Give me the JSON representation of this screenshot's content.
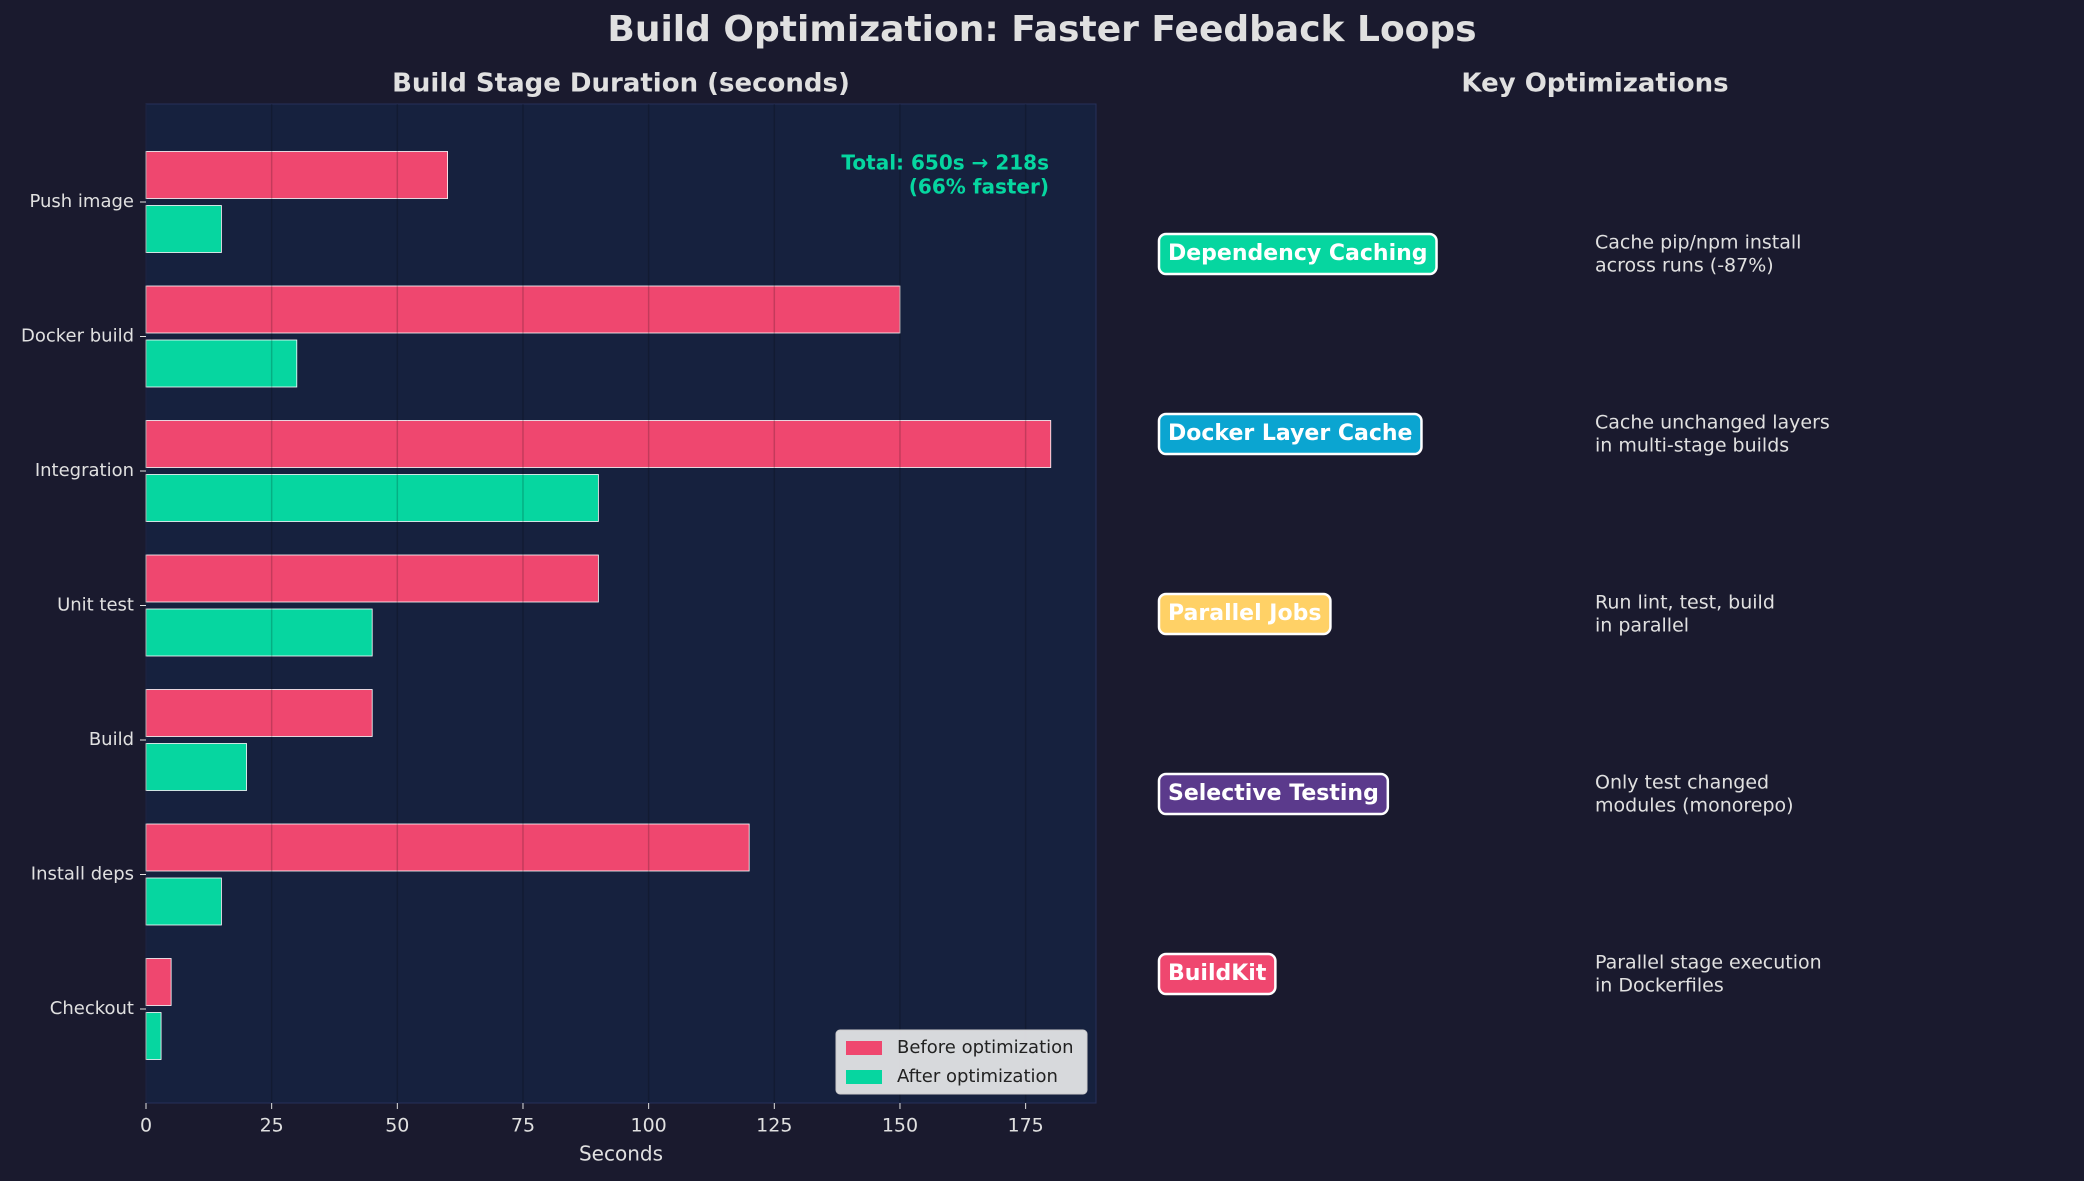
{
  "title": "Build Optimization: Faster Feedback Loops",
  "chart_data": {
    "type": "barh",
    "title": "Build Stage Duration (seconds)",
    "categories": [
      "Checkout",
      "Install deps",
      "Build",
      "Unit test",
      "Integration",
      "Docker build",
      "Push image"
    ],
    "series": [
      {
        "name": "Before optimization",
        "color": "#ef476f",
        "values": [
          5,
          120,
          45,
          90,
          180,
          150,
          60
        ]
      },
      {
        "name": "After optimization",
        "color": "#06d6a0",
        "values": [
          3,
          15,
          20,
          45,
          90,
          30,
          15
        ]
      }
    ],
    "xlabel": "Seconds",
    "xlim": [
      0,
      189
    ],
    "xticks": [
      0,
      25,
      50,
      75,
      100,
      125,
      150,
      175
    ],
    "grid": true,
    "legend": "lower right",
    "annotation": [
      "Total: 650s → 218s",
      "(66% faster)"
    ]
  },
  "panel": {
    "title": "Key Optimizations",
    "items": [
      {
        "label": "Dependency Caching",
        "color": "#06d6a0",
        "description": [
          "Cache pip/npm install",
          "across runs (-87%)"
        ]
      },
      {
        "label": "Docker Layer Cache",
        "color": "#0ba5d1",
        "description": [
          "Cache unchanged layers",
          "in multi-stage builds"
        ]
      },
      {
        "label": "Parallel Jobs",
        "color": "#ffd166",
        "description": [
          "Run lint, test, build",
          "in parallel"
        ]
      },
      {
        "label": "Selective Testing",
        "color": "#5b3a8c",
        "description": [
          "Only test changed",
          "modules (monorepo)"
        ]
      },
      {
        "label": "BuildKit",
        "color": "#ef476f",
        "description": [
          "Parallel stage execution",
          "in Dockerfiles"
        ]
      }
    ]
  }
}
